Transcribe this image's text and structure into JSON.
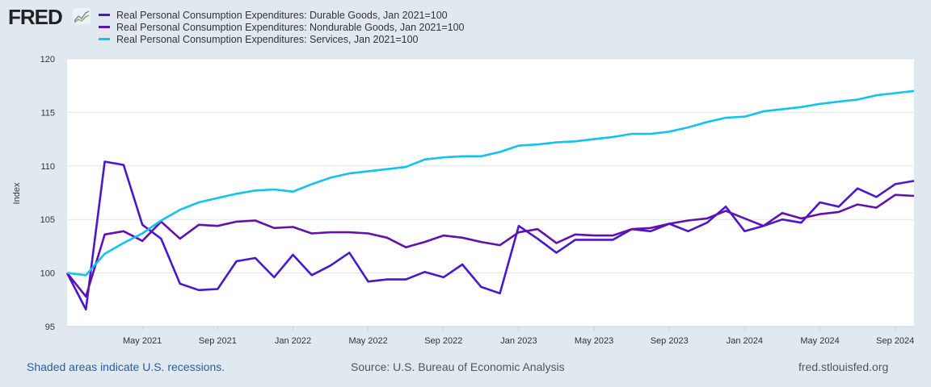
{
  "header": {
    "logo": "FRED",
    "logo_icon": "chart-line-icon"
  },
  "footer": {
    "recession_note": "Shaded areas indicate U.S. recessions.",
    "source": "Source: U.S. Bureau of Economic Analysis",
    "site": "fred.stlouisfed.org"
  },
  "chart_data": {
    "type": "line",
    "title": "",
    "xlabel": "",
    "ylabel": "Index",
    "ylim": [
      95,
      120
    ],
    "yticks": [
      95,
      100,
      105,
      110,
      115,
      120
    ],
    "grid": true,
    "legend_position": "top-left",
    "x_start": "Jan 2021",
    "x_end": "Oct 2024",
    "frequency": "monthly",
    "xtick_labels": [
      {
        "label": "May 2021",
        "index": 4
      },
      {
        "label": "Sep 2021",
        "index": 8
      },
      {
        "label": "Jan 2022",
        "index": 12
      },
      {
        "label": "May 2022",
        "index": 16
      },
      {
        "label": "Sep 2022",
        "index": 20
      },
      {
        "label": "Jan 2023",
        "index": 24
      },
      {
        "label": "May 2023",
        "index": 28
      },
      {
        "label": "Sep 2023",
        "index": 32
      },
      {
        "label": "Jan 2024",
        "index": 36
      },
      {
        "label": "May 2024",
        "index": 40
      },
      {
        "label": "Sep 2024",
        "index": 44
      }
    ],
    "series": [
      {
        "name": "Real Personal Consumption Expenditures: Durable Goods, Jan 2021=100",
        "color": "#4a16cf",
        "values": [
          100,
          96.6,
          110.4,
          110.1,
          104.5,
          103.2,
          99.0,
          98.4,
          98.5,
          101.1,
          101.4,
          99.6,
          101.7,
          99.8,
          100.7,
          101.9,
          99.2,
          99.4,
          99.4,
          100.1,
          99.6,
          100.8,
          98.7,
          98.1,
          104.4,
          103.2,
          101.9,
          103.1,
          103.1,
          103.1,
          104.1,
          103.9,
          104.6,
          103.9,
          104.7,
          106.2,
          103.9,
          104.4,
          105.0,
          104.7,
          106.6,
          106.2,
          107.9,
          107.1,
          108.3,
          108.6
        ]
      },
      {
        "name": "Real Personal Consumption Expenditures: Nondurable Goods, Jan 2021=100",
        "color": "#6210ae",
        "values": [
          100,
          97.8,
          103.6,
          103.9,
          103.0,
          104.8,
          103.2,
          104.5,
          104.4,
          104.8,
          104.9,
          104.2,
          104.3,
          103.7,
          103.8,
          103.8,
          103.7,
          103.3,
          102.4,
          102.9,
          103.5,
          103.3,
          102.9,
          102.6,
          103.8,
          104.1,
          102.8,
          103.6,
          103.5,
          103.5,
          104.1,
          104.2,
          104.6,
          104.9,
          105.1,
          105.8,
          105.1,
          104.4,
          105.6,
          105.1,
          105.5,
          105.7,
          106.4,
          106.1,
          107.3,
          107.2
        ]
      },
      {
        "name": "Real Personal Consumption Expenditures: Services, Jan 2021=100",
        "color": "#12c2ef",
        "values": [
          100,
          99.8,
          101.8,
          102.8,
          103.7,
          104.9,
          105.9,
          106.6,
          107.0,
          107.4,
          107.7,
          107.8,
          107.6,
          108.3,
          108.9,
          109.3,
          109.5,
          109.7,
          109.9,
          110.6,
          110.8,
          110.9,
          110.9,
          111.3,
          111.9,
          112.0,
          112.2,
          112.3,
          112.5,
          112.7,
          113.0,
          113.0,
          113.2,
          113.6,
          114.1,
          114.5,
          114.6,
          115.1,
          115.3,
          115.5,
          115.8,
          116.0,
          116.2,
          116.6,
          116.8,
          117.0
        ]
      }
    ]
  }
}
